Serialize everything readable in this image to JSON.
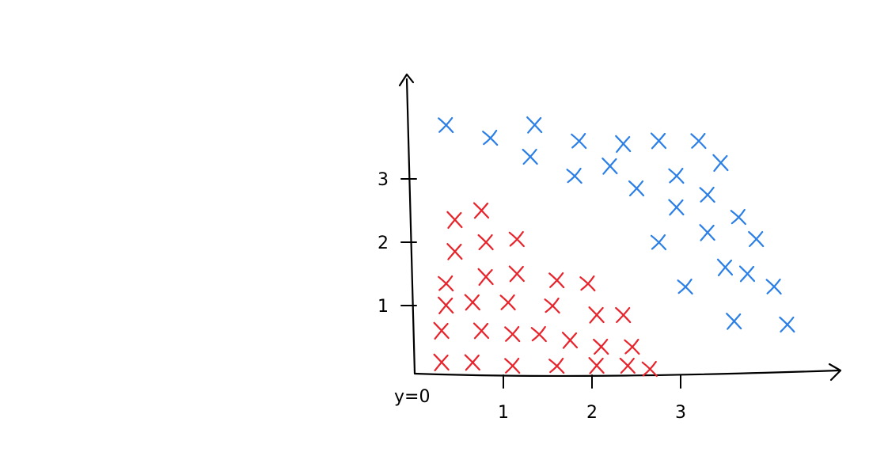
{
  "chart_data": {
    "type": "scatter",
    "title": "",
    "xlabel": "",
    "ylabel": "",
    "xlim": [
      0,
      3.9
    ],
    "ylim": [
      0,
      4.3
    ],
    "grid": false,
    "legend": "none",
    "marker": "x",
    "x_ticks": [
      {
        "value": 1,
        "label": "1"
      },
      {
        "value": 2,
        "label": "2"
      },
      {
        "value": 3,
        "label": "3"
      }
    ],
    "y_ticks": [
      {
        "value": 1,
        "label": "1"
      },
      {
        "value": 2,
        "label": "2"
      },
      {
        "value": 3,
        "label": "3"
      }
    ],
    "origin_label": "y=0",
    "series": [
      {
        "color": "#e8232b",
        "points": [
          [
            0.3,
            0.1
          ],
          [
            0.65,
            0.1
          ],
          [
            1.1,
            0.05
          ],
          [
            1.6,
            0.05
          ],
          [
            2.05,
            0.05
          ],
          [
            2.4,
            0.05
          ],
          [
            2.65,
            0.0
          ],
          [
            0.3,
            0.6
          ],
          [
            0.75,
            0.6
          ],
          [
            1.1,
            0.55
          ],
          [
            1.4,
            0.55
          ],
          [
            1.75,
            0.45
          ],
          [
            2.1,
            0.35
          ],
          [
            2.45,
            0.35
          ],
          [
            0.35,
            1.0
          ],
          [
            0.65,
            1.05
          ],
          [
            1.05,
            1.05
          ],
          [
            1.55,
            1.0
          ],
          [
            2.05,
            0.85
          ],
          [
            2.35,
            0.85
          ],
          [
            0.35,
            1.35
          ],
          [
            0.8,
            1.45
          ],
          [
            1.15,
            1.5
          ],
          [
            1.6,
            1.4
          ],
          [
            1.95,
            1.35
          ],
          [
            0.45,
            1.85
          ],
          [
            0.8,
            2.0
          ],
          [
            1.15,
            2.05
          ],
          [
            0.45,
            2.35
          ],
          [
            0.75,
            2.5
          ]
        ]
      },
      {
        "color": "#2b7fe6",
        "points": [
          [
            0.35,
            3.85
          ],
          [
            0.85,
            3.65
          ],
          [
            1.35,
            3.85
          ],
          [
            1.3,
            3.35
          ],
          [
            1.85,
            3.6
          ],
          [
            2.35,
            3.55
          ],
          [
            2.75,
            3.6
          ],
          [
            3.2,
            3.6
          ],
          [
            1.8,
            3.05
          ],
          [
            2.2,
            3.2
          ],
          [
            2.5,
            2.85
          ],
          [
            2.95,
            3.05
          ],
          [
            3.45,
            3.25
          ],
          [
            2.95,
            2.55
          ],
          [
            3.3,
            2.75
          ],
          [
            3.65,
            2.4
          ],
          [
            3.3,
            2.15
          ],
          [
            3.85,
            2.05
          ],
          [
            2.75,
            2.0
          ],
          [
            3.5,
            1.6
          ],
          [
            3.75,
            1.5
          ],
          [
            4.05,
            1.3
          ],
          [
            3.05,
            1.3
          ],
          [
            3.6,
            0.75
          ],
          [
            4.2,
            0.7
          ]
        ]
      }
    ]
  }
}
